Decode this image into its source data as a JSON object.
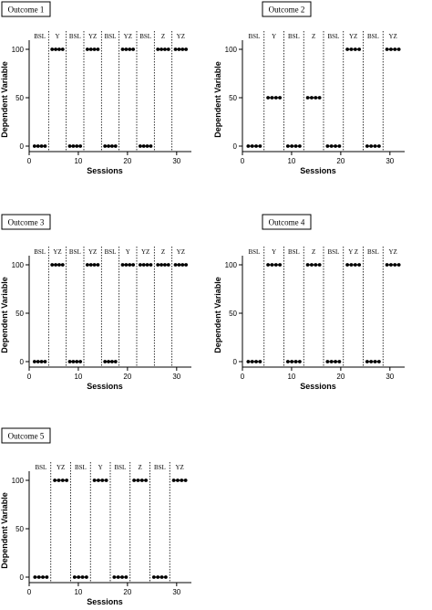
{
  "chart_data": [
    {
      "type": "line",
      "title": "Outcome 1",
      "xlabel": "Sessions",
      "ylabel": "Dependent Variable",
      "xlim": [
        0,
        33
      ],
      "ylim": [
        0,
        100
      ],
      "x_ticks": [
        0,
        10,
        20,
        30
      ],
      "y_ticks": [
        0,
        50,
        100
      ],
      "phases": [
        {
          "label": "BSL",
          "sessions": [
            1,
            2,
            3,
            4
          ],
          "value": 0
        },
        {
          "label": "Y",
          "sessions": [
            6,
            7,
            8,
            9
          ],
          "value": 100
        },
        {
          "label": "BSL",
          "sessions": [
            11,
            12,
            13,
            14
          ],
          "value": 0
        },
        {
          "label": "YZ",
          "sessions": [
            16,
            17,
            18,
            19
          ],
          "value": 100
        },
        {
          "label": "BSL",
          "sessions": [
            21,
            22,
            23,
            24
          ],
          "value": 0
        },
        {
          "label": "YZ",
          "sessions": [
            26,
            27,
            28,
            29
          ],
          "value": 100
        },
        {
          "label": "BSL",
          "sessions": [
            31,
            32,
            33,
            34
          ],
          "value": 0
        },
        {
          "label": "Z",
          "sessions": [
            36,
            37,
            38,
            39
          ],
          "value": 100
        },
        {
          "label": "YZ",
          "sessions": [
            41,
            42,
            43,
            44
          ],
          "value": 100
        }
      ]
    },
    {
      "type": "line",
      "title": "Outcome 2",
      "xlabel": "Sessions",
      "ylabel": "Dependent Variable",
      "xlim": [
        0,
        33
      ],
      "ylim": [
        0,
        100
      ],
      "x_ticks": [
        0,
        10,
        20,
        30
      ],
      "y_ticks": [
        0,
        50,
        100
      ],
      "phases": [
        {
          "label": "BSL",
          "sessions": [
            1,
            2,
            3,
            4
          ],
          "value": 0
        },
        {
          "label": "Y",
          "sessions": [
            6,
            7,
            8,
            9
          ],
          "value": 50
        },
        {
          "label": "BSL",
          "sessions": [
            11,
            12,
            13,
            14
          ],
          "value": 0
        },
        {
          "label": "Z",
          "sessions": [
            16,
            17,
            18,
            19
          ],
          "value": 50
        },
        {
          "label": "BSL",
          "sessions": [
            21,
            22,
            23,
            24
          ],
          "value": 0
        },
        {
          "label": "YZ",
          "sessions": [
            26,
            27,
            28,
            29
          ],
          "value": 100
        },
        {
          "label": "BSL",
          "sessions": [
            31,
            32,
            33,
            34
          ],
          "value": 0
        },
        {
          "label": "YZ",
          "sessions": [
            36,
            37,
            38,
            39
          ],
          "value": 100
        }
      ]
    },
    {
      "type": "line",
      "title": "Outcome 3",
      "xlabel": "Sessions",
      "ylabel": "Dependent Variable",
      "xlim": [
        0,
        33
      ],
      "ylim": [
        0,
        100
      ],
      "x_ticks": [
        0,
        10,
        20,
        30
      ],
      "y_ticks": [
        0,
        50,
        100
      ],
      "phases": [
        {
          "label": "BSL",
          "sessions": [
            1,
            2,
            3,
            4
          ],
          "value": 0
        },
        {
          "label": "YZ",
          "sessions": [
            6,
            7,
            8,
            9
          ],
          "value": 100
        },
        {
          "label": "BSL",
          "sessions": [
            11,
            12,
            13,
            14
          ],
          "value": 0
        },
        {
          "label": "YZ",
          "sessions": [
            16,
            17,
            18,
            19
          ],
          "value": 100
        },
        {
          "label": "BSL",
          "sessions": [
            21,
            22,
            23,
            24
          ],
          "value": 0
        },
        {
          "label": "Y",
          "sessions": [
            26,
            27,
            28,
            29
          ],
          "value": 100
        },
        {
          "label": "YZ",
          "sessions": [
            31,
            32,
            33,
            34
          ],
          "value": 100
        },
        {
          "label": "Z",
          "sessions": [
            36,
            37,
            38,
            39
          ],
          "value": 100
        },
        {
          "label": "YZ",
          "sessions": [
            41,
            42,
            43,
            44
          ],
          "value": 100
        }
      ]
    },
    {
      "type": "line",
      "title": "Outcome 4",
      "xlabel": "Sessions",
      "ylabel": "Dependent Variable",
      "xlim": [
        0,
        33
      ],
      "ylim": [
        0,
        100
      ],
      "x_ticks": [
        0,
        10,
        20,
        30
      ],
      "y_ticks": [
        0,
        50,
        100
      ],
      "phases": [
        {
          "label": "BSL",
          "sessions": [
            1,
            2,
            3,
            4
          ],
          "value": 0
        },
        {
          "label": "Y",
          "sessions": [
            6,
            7,
            8,
            9
          ],
          "value": 100
        },
        {
          "label": "BSL",
          "sessions": [
            11,
            12,
            13,
            14
          ],
          "value": 0
        },
        {
          "label": "Z",
          "sessions": [
            16,
            17,
            18,
            19
          ],
          "value": 100
        },
        {
          "label": "BSL",
          "sessions": [
            21,
            22,
            23,
            24
          ],
          "value": 0
        },
        {
          "label": "Y Z",
          "sessions": [
            26,
            27,
            28,
            29
          ],
          "value": 100
        },
        {
          "label": "BSL",
          "sessions": [
            31,
            32,
            33,
            34
          ],
          "value": 0
        },
        {
          "label": "YZ",
          "sessions": [
            36,
            37,
            38,
            39
          ],
          "value": 100
        }
      ]
    },
    {
      "type": "line",
      "title": "Outcome 5",
      "xlabel": "Sessions",
      "ylabel": "Dependent Variable",
      "xlim": [
        0,
        33
      ],
      "ylim": [
        0,
        100
      ],
      "x_ticks": [
        0,
        10,
        20,
        30
      ],
      "y_ticks": [
        0,
        50,
        100
      ],
      "phases": [
        {
          "label": "BSL",
          "sessions": [
            1,
            2,
            3,
            4
          ],
          "value": 0
        },
        {
          "label": "YZ",
          "sessions": [
            6,
            7,
            8,
            9
          ],
          "value": 100
        },
        {
          "label": "BSL",
          "sessions": [
            11,
            12,
            13,
            14
          ],
          "value": 0
        },
        {
          "label": "Y",
          "sessions": [
            16,
            17,
            18,
            19
          ],
          "value": 100
        },
        {
          "label": "BSL",
          "sessions": [
            21,
            22,
            23,
            24
          ],
          "value": 0
        },
        {
          "label": "Z",
          "sessions": [
            26,
            27,
            28,
            29
          ],
          "value": 100
        },
        {
          "label": "BSL",
          "sessions": [
            31,
            32,
            33,
            34
          ],
          "value": 0
        },
        {
          "label": "YZ",
          "sessions": [
            36,
            37,
            38,
            39
          ],
          "value": 100
        }
      ]
    }
  ]
}
